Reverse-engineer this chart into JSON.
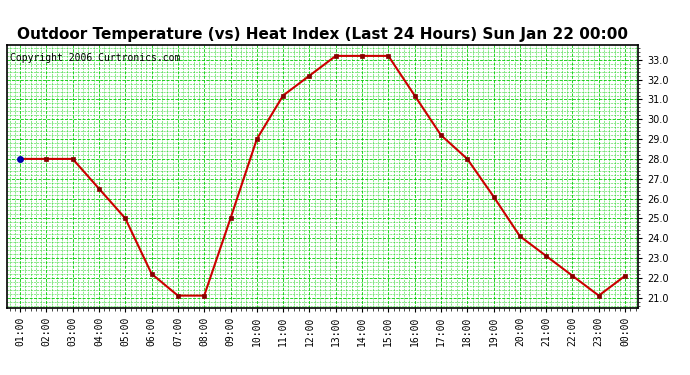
{
  "title": "Outdoor Temperature (vs) Heat Index (Last 24 Hours) Sun Jan 22 00:00",
  "copyright": "Copyright 2006 Curtronics.com",
  "hours": [
    "01:00",
    "02:00",
    "03:00",
    "04:00",
    "05:00",
    "06:00",
    "07:00",
    "08:00",
    "09:00",
    "10:00",
    "11:00",
    "12:00",
    "13:00",
    "14:00",
    "15:00",
    "16:00",
    "17:00",
    "18:00",
    "19:00",
    "20:00",
    "21:00",
    "22:00",
    "23:00",
    "00:00"
  ],
  "values": [
    28.0,
    28.0,
    28.0,
    26.5,
    25.0,
    22.2,
    21.1,
    21.1,
    25.0,
    29.0,
    31.2,
    32.2,
    33.2,
    33.2,
    33.2,
    31.2,
    29.2,
    28.0,
    26.1,
    24.1,
    23.1,
    22.1,
    21.1,
    22.1
  ],
  "line_color": "#cc0000",
  "marker_color": "#880000",
  "bg_color": "#ffffff",
  "plot_bg_color": "#ffffff",
  "grid_major_color": "#00cc00",
  "grid_minor_color": "#00cc00",
  "title_fontsize": 11,
  "copyright_fontsize": 7,
  "tick_label_fontsize": 7,
  "ylim": [
    20.5,
    33.75
  ],
  "yticks": [
    21.0,
    22.0,
    23.0,
    24.0,
    25.0,
    26.0,
    27.0,
    28.0,
    29.0,
    30.0,
    31.0,
    32.0,
    33.0
  ],
  "first_point_color": "#0000aa"
}
